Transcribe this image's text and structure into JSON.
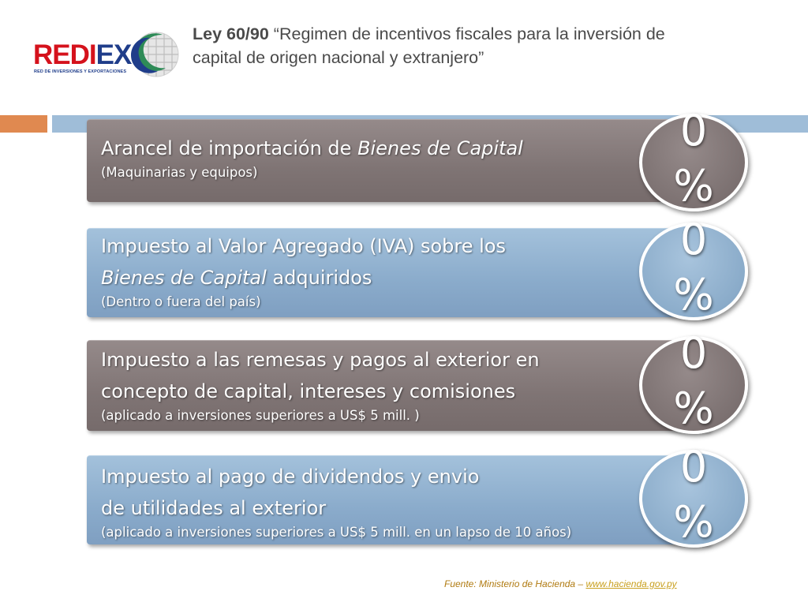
{
  "header": {
    "logo_text_red": "REDI",
    "logo_text_blue": "EX",
    "logo_subtitle": "RED DE INVERSIONES Y EXPORTACIONES",
    "title_law": "Ley 60/90",
    "title_rest": " “Regimen de incentivos fiscales para la inversión de capital de origen nacional y extranjero”"
  },
  "rows": [
    {
      "main_parts": [
        "Arancel de importación de ",
        "Bienes de Capital",
        ""
      ],
      "sub": "(Maquinarias y equipos)",
      "badge_value": "0",
      "badge_symbol": "%",
      "color": "#7f7474"
    },
    {
      "main_line1": "Impuesto al Valor Agregado (IVA) sobre los",
      "main_line2_italic": "Bienes de Capital",
      "main_line2_rest": " adquiridos",
      "sub": "(Dentro o fuera del país)",
      "badge_value": "0",
      "badge_symbol": "%",
      "color": "#8aabcb"
    },
    {
      "main_line1": "Impuesto a las remesas y pagos al exterior en",
      "main_line2": "concepto de capital, intereses y comisiones",
      "sub": "(aplicado a inversiones superiores a US$ 5 mill. )",
      "badge_value": "0",
      "badge_symbol": "%",
      "color": "#7f7474"
    },
    {
      "main_line1": "Impuesto al pago de dividendos y envio",
      "main_line2": "de utilidades al exterior",
      "sub": "(aplicado a inversiones superiores a US$ 5 mill. en un lapso de 10 años)",
      "badge_value": "0",
      "badge_symbol": "%",
      "color": "#8aabcb"
    }
  ],
  "footer": {
    "source_text": "Fuente: Ministerio de Hacienda – ",
    "source_link": "www.hacienda.gov.py"
  },
  "colors": {
    "accent_orange": "#e08950",
    "accent_blue": "#9fbdd8",
    "brand_red": "#d5121c",
    "brand_blue": "#1f3d8a",
    "brand_green": "#2e8b57"
  }
}
